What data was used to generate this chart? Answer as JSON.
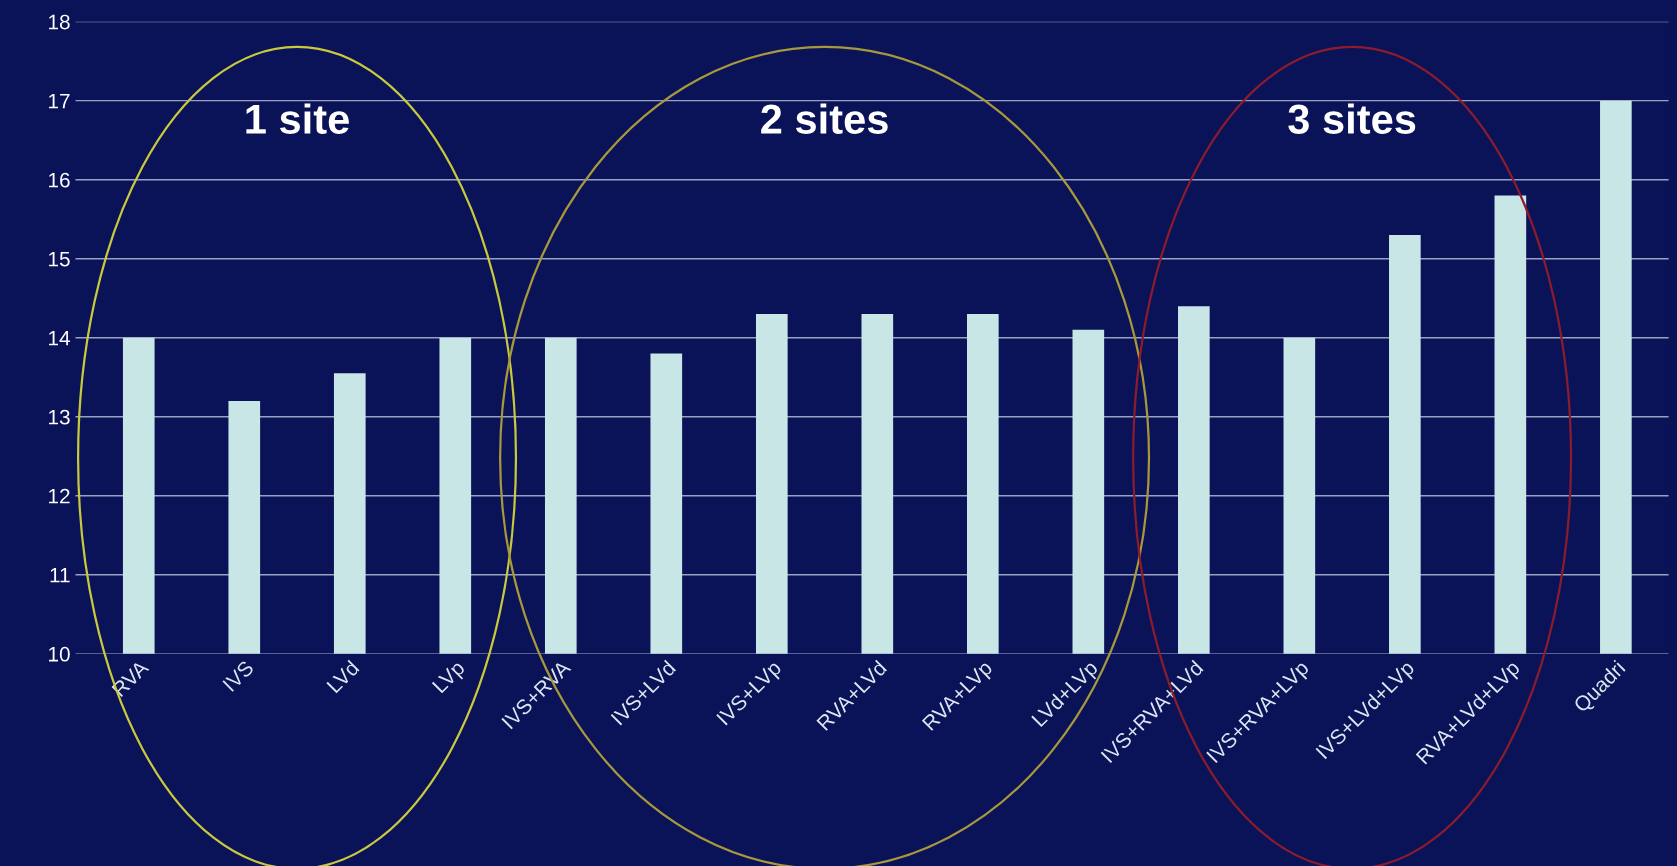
{
  "chart_data": {
    "type": "bar",
    "categories": [
      "RVA",
      "IVS",
      "LVd",
      "LVp",
      "IVS+RVA",
      "IVS+LVd",
      "IVS+LVp",
      "RVA+LVd",
      "RVA+LVp",
      "LVd+LVp",
      "IVS+RVA+LVd",
      "IVS+RVA+LVp",
      "IVS+LVd+LVp",
      "RVA+LVd+LVp",
      "Quadri"
    ],
    "values": [
      14.0,
      13.2,
      13.55,
      14.0,
      14.0,
      13.8,
      14.3,
      14.3,
      14.3,
      14.1,
      14.4,
      14.0,
      15.3,
      15.8,
      17.0
    ],
    "color": "#c8e6e6",
    "ylim": [
      10,
      18
    ],
    "yticks": [
      10,
      11,
      12,
      13,
      14,
      15,
      16,
      17,
      18
    ],
    "grid": "y",
    "annotations": [
      "1 site",
      "2 sites",
      "3 sites"
    ]
  }
}
